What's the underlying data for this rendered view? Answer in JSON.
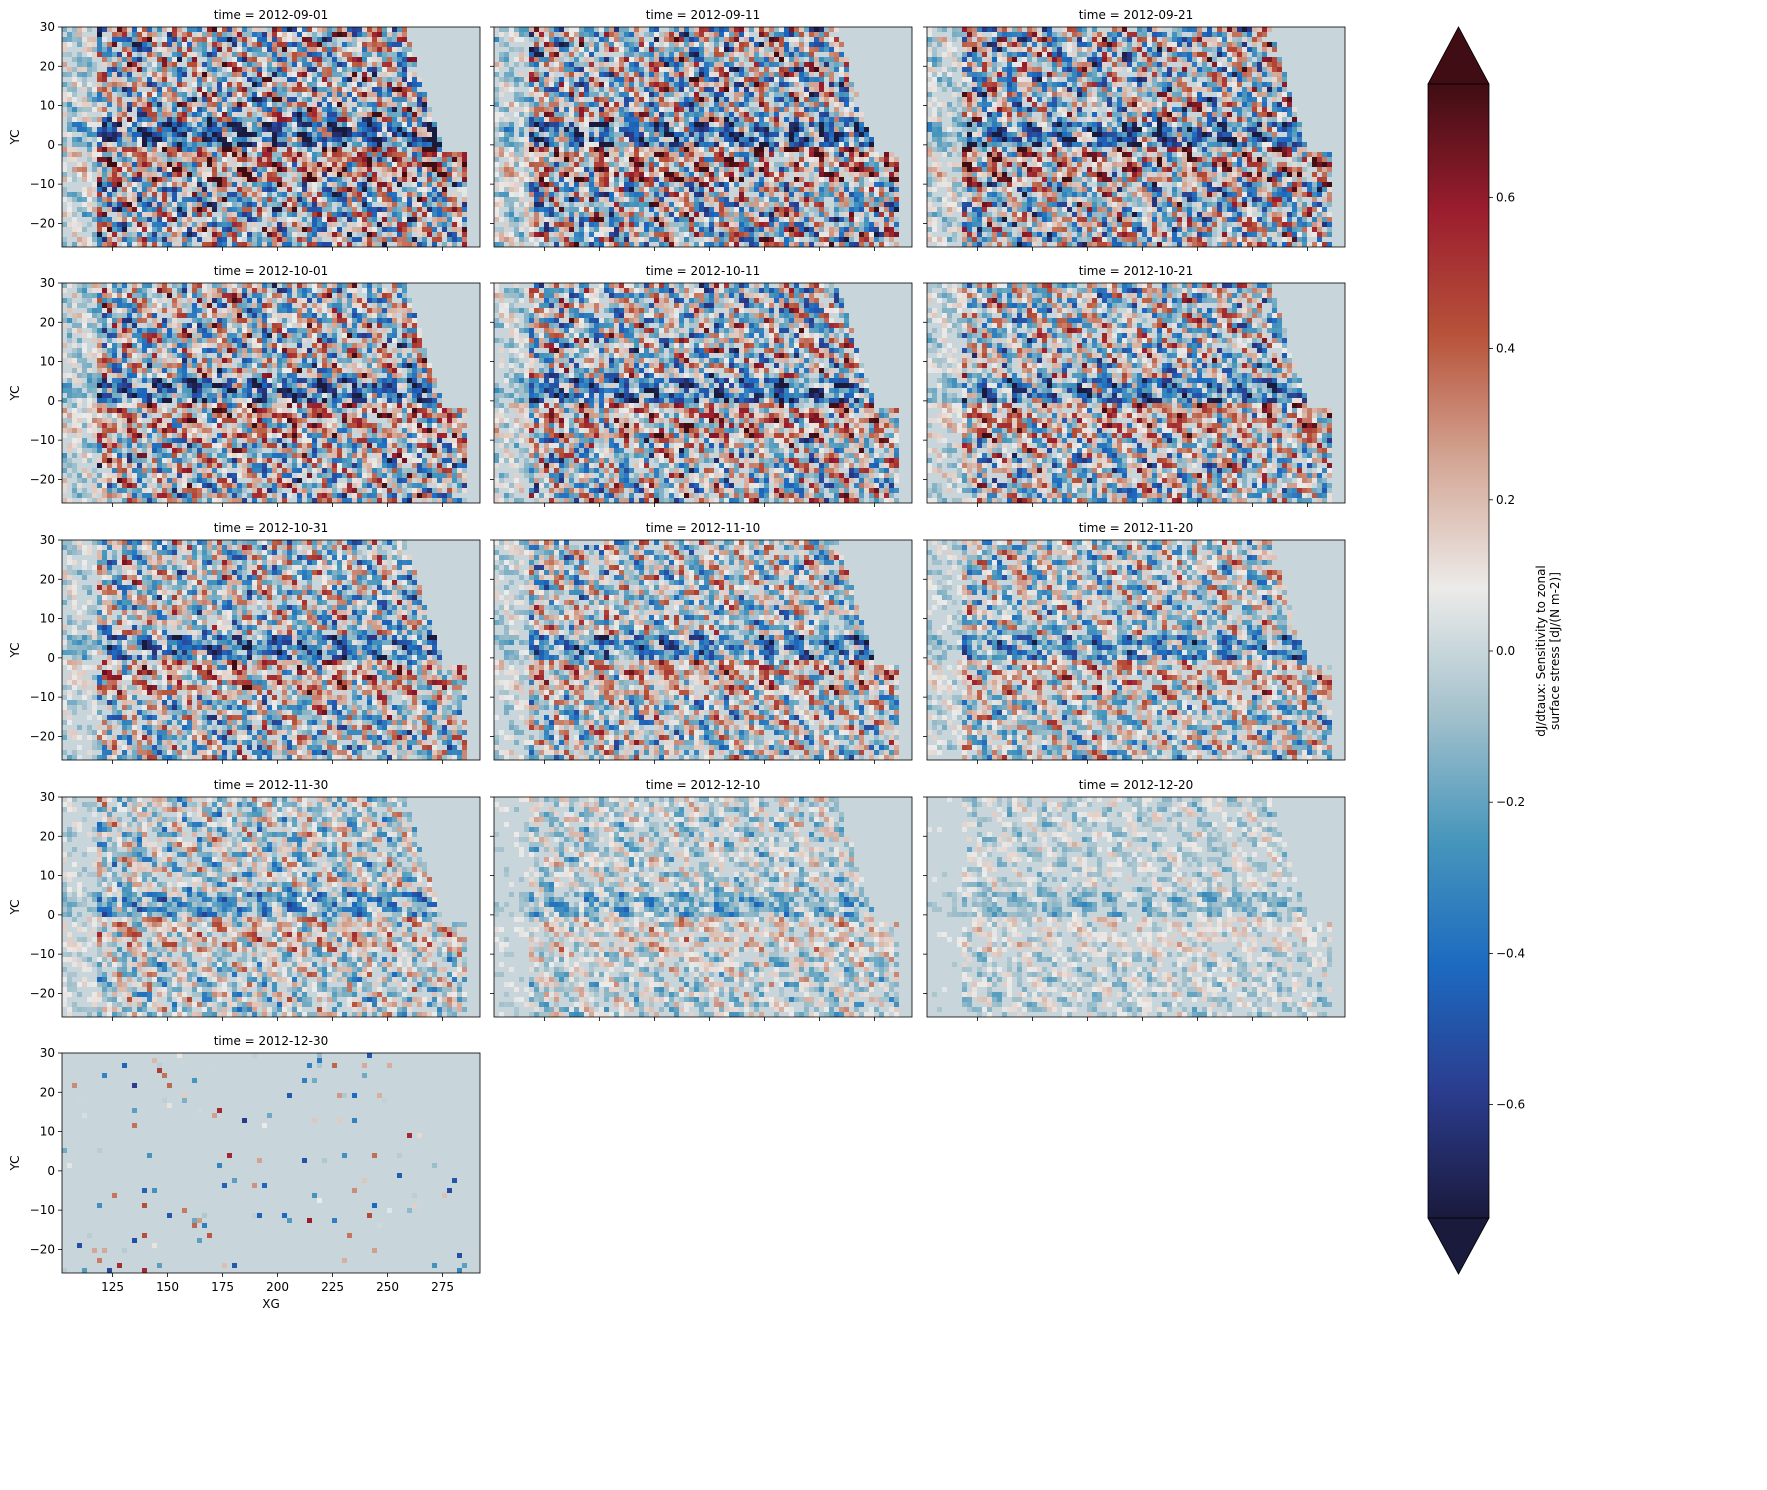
{
  "figure": {
    "panels": [
      {
        "title": "time = 2012-09-01",
        "activity": 1.0
      },
      {
        "title": "time = 2012-09-11",
        "activity": 0.98
      },
      {
        "title": "time = 2012-09-21",
        "activity": 0.95
      },
      {
        "title": "time = 2012-10-01",
        "activity": 0.9
      },
      {
        "title": "time = 2012-10-11",
        "activity": 0.86
      },
      {
        "title": "time = 2012-10-21",
        "activity": 0.82
      },
      {
        "title": "time = 2012-10-31",
        "activity": 0.78
      },
      {
        "title": "time = 2012-11-10",
        "activity": 0.72
      },
      {
        "title": "time = 2012-11-20",
        "activity": 0.66
      },
      {
        "title": "time = 2012-11-30",
        "activity": 0.55
      },
      {
        "title": "time = 2012-12-10",
        "activity": 0.4
      },
      {
        "title": "time = 2012-12-20",
        "activity": 0.28
      },
      {
        "title": "time = 2012-12-30",
        "activity": 0.1
      }
    ]
  },
  "chart_data": {
    "type": "heatmap",
    "title": "",
    "xlabel": "XG",
    "ylabel": "YC",
    "xlim": [
      102,
      292
    ],
    "ylim": [
      -26,
      30
    ],
    "x_ticks": [
      125,
      150,
      175,
      200,
      225,
      250,
      275
    ],
    "x_tick_labels": [
      "125",
      "150",
      "175",
      "200",
      "225",
      "250",
      "275"
    ],
    "y_ticks": [
      30,
      20,
      10,
      0,
      -10,
      -20
    ],
    "y_tick_labels": [
      "30",
      "20",
      "10",
      "0",
      "−10",
      "−20"
    ],
    "facet_layout": {
      "columns": 3,
      "rows": 5
    },
    "grid": false,
    "colorbar": {
      "label_line1": "dJ/dtaux: Sensitivity to zonal",
      "label_line2": "surface stress [dJ/(N m-2)]",
      "range": [
        -0.75,
        0.75
      ],
      "extend": "both",
      "ticks": [
        0.6,
        0.4,
        0.2,
        0.0,
        -0.2,
        -0.4,
        -0.6
      ],
      "tick_labels": [
        "0.6",
        "0.4",
        "0.2",
        "0.0",
        "−0.2",
        "−0.4",
        "−0.6"
      ],
      "colors": [
        "#1a1a3c",
        "#2b3c8e",
        "#1c6ac0",
        "#4796bc",
        "#a3c1cc",
        "#ecebe9",
        "#d4a796",
        "#b8533a",
        "#9a1d2e",
        "#3f0d13"
      ]
    }
  }
}
